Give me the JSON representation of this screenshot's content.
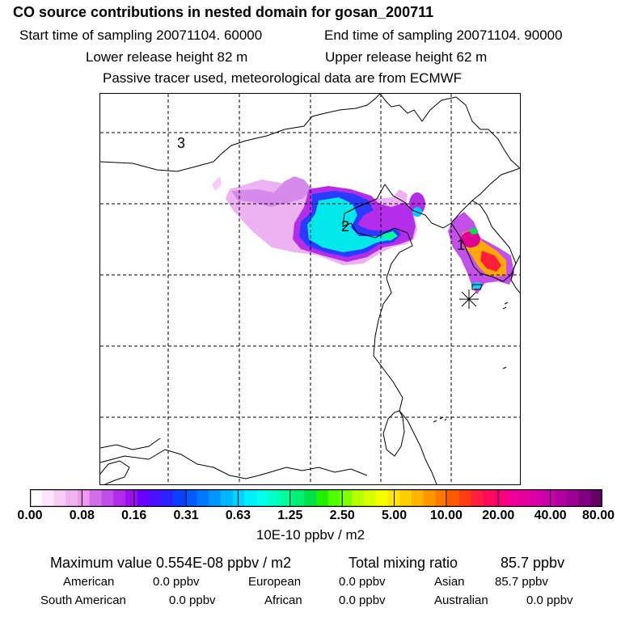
{
  "header": {
    "title": "CO  source contributions in nested domain for gosan_200711",
    "start_label": "Start time of sampling 20071104. 60000",
    "end_label": "End time of sampling 20071104. 90000",
    "lower_label": "Lower release height   82 m",
    "upper_label": "Upper release height   62 m",
    "tracer_label": "Passive tracer used, meteorological data are from ECMWF"
  },
  "map": {
    "region_labels": [
      "1",
      "2",
      "3"
    ],
    "receptor_marker": "receptor-star-icon"
  },
  "colorbar": {
    "ticks": [
      "0.00",
      "0.08",
      "0.16",
      "0.31",
      "0.63",
      "1.25",
      "2.50",
      "5.00",
      "10.00",
      "20.00",
      "40.00",
      "80.00"
    ],
    "units": "10E-10 ppbv / m2",
    "colors": [
      "#ffffff",
      "#fbe6fb",
      "#f6ccf6",
      "#f2b2f2",
      "#eb98ee",
      "#d36ee9",
      "#c24ee9",
      "#b02ce9",
      "#9a10ef",
      "#6b00ff",
      "#4a12ff",
      "#2a22ff",
      "#0a40ff",
      "#005cff",
      "#0078ff",
      "#0096ff",
      "#00b4ff",
      "#00d2ff",
      "#00f0ff",
      "#00ffe6",
      "#00ffc0",
      "#00ff98",
      "#00f070",
      "#00e048",
      "#20f000",
      "#50ff00",
      "#80ff00",
      "#b4ff00",
      "#d8ff00",
      "#f4ff00",
      "#ffe600",
      "#ffd000",
      "#ffb400",
      "#ff9600",
      "#ff7800",
      "#ff5a00",
      "#ff3c14",
      "#ff1e3c",
      "#ff0a5a",
      "#ff0078",
      "#f00096",
      "#e600a0",
      "#d800a8",
      "#c800aa",
      "#b400a0",
      "#9c0094",
      "#820080",
      "#660066"
    ]
  },
  "summary": {
    "max_label": "Maximum value  0.554E-08 ppbv / m2",
    "total_label": "Total mixing ratio",
    "total_value": "85.7 ppbv",
    "american_label": "American",
    "american_value": "0.0 ppbv",
    "european_label": "European",
    "european_value": "0.0 ppbv",
    "asian_label": "Asian",
    "asian_value": "85.7 ppbv",
    "south_american_label": "South American",
    "south_american_value": "0.0 ppbv",
    "african_label": "African",
    "african_value": "0.0 ppbv",
    "australian_label": "Australian",
    "australian_value": "0.0 ppbv"
  }
}
